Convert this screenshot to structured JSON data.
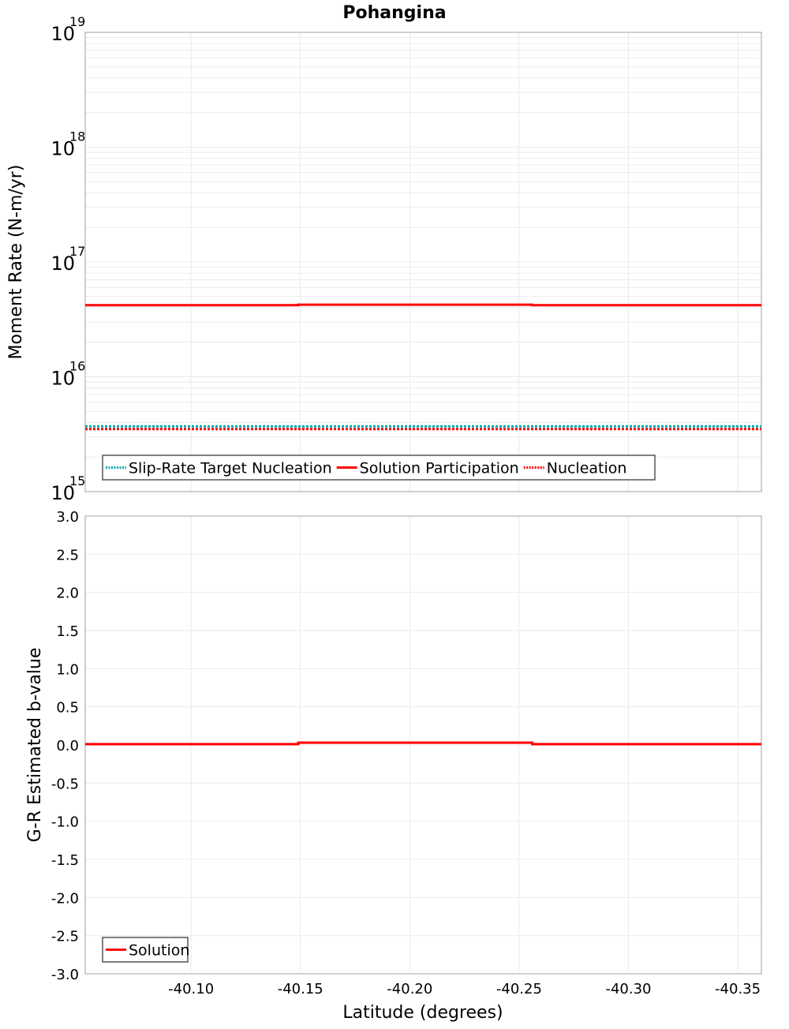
{
  "chart_data": [
    {
      "type": "line",
      "title": "Pohangina",
      "xlabel": "Latitude (degrees)",
      "ylabel": "Moment Rate (N-m/yr)",
      "yscale": "log",
      "ylim": [
        1000000000000000.0,
        1e+19
      ],
      "xlim": [
        -40.0516,
        -40.3608
      ],
      "x_inverted": true,
      "grid": true,
      "y_ticks": [
        {
          "base": "10",
          "exp": "19",
          "value": 1e+19
        },
        {
          "base": "10",
          "exp": "18",
          "value": 1e+18
        },
        {
          "base": "10",
          "exp": "17",
          "value": 1e+17
        },
        {
          "base": "10",
          "exp": "16",
          "value": 1e+16
        },
        {
          "base": "10",
          "exp": "15",
          "value": 1000000000000000.0
        }
      ],
      "legend_position": "lower-left",
      "series": [
        {
          "name": "Slip-Rate Target Nucleation",
          "color": "#00aaaa",
          "style": "dotted",
          "x": [
            -40.0516,
            -40.149,
            -40.149,
            -40.256,
            -40.256,
            -40.3608
          ],
          "values": [
            3700000000000000.0,
            3700000000000000.0,
            3700000000000000.0,
            3700000000000000.0,
            3700000000000000.0,
            3700000000000000.0
          ]
        },
        {
          "name": "Solution Participation",
          "color": "#ff0000",
          "style": "solid",
          "x": [
            -40.0516,
            -40.149,
            -40.149,
            -40.256,
            -40.256,
            -40.3608
          ],
          "values": [
            4.2e+16,
            4.2e+16,
            4.25e+16,
            4.25e+16,
            4.2e+16,
            4.2e+16
          ]
        },
        {
          "name": "Nucleation",
          "color": "#ff0000",
          "style": "dotted",
          "x": [
            -40.0516,
            -40.149,
            -40.149,
            -40.256,
            -40.256,
            -40.3608
          ],
          "values": [
            3500000000000000.0,
            3500000000000000.0,
            3500000000000000.0,
            3500000000000000.0,
            3500000000000000.0,
            3500000000000000.0
          ]
        }
      ]
    },
    {
      "type": "line",
      "title": "",
      "xlabel": "Latitude (degrees)",
      "ylabel": "G-R Estimated b-value",
      "ylim": [
        -3.0,
        3.0
      ],
      "xlim": [
        -40.0516,
        -40.3608
      ],
      "x_inverted": true,
      "grid": true,
      "y_ticks": [
        "3.0",
        "2.5",
        "2.0",
        "1.5",
        "1.0",
        "0.5",
        "0.0",
        "-0.5",
        "-1.0",
        "-1.5",
        "-2.0",
        "-2.5",
        "-3.0"
      ],
      "x_ticks": [
        "-40.10",
        "-40.15",
        "-40.20",
        "-40.25",
        "-40.30",
        "-40.35"
      ],
      "legend_position": "lower-left",
      "series": [
        {
          "name": "Solution",
          "color": "#ff0000",
          "style": "solid",
          "x": [
            -40.0516,
            -40.149,
            -40.149,
            -40.256,
            -40.256,
            -40.3608
          ],
          "values": [
            0.01,
            0.01,
            0.03,
            0.03,
            0.01,
            0.01
          ]
        }
      ]
    }
  ],
  "labels": {
    "title": "Pohangina",
    "top_ylabel": "Moment Rate (N-m/yr)",
    "bottom_ylabel": "G-R Estimated b-value",
    "xlabel": "Latitude (degrees)"
  },
  "top_legend": [
    {
      "label": "Slip-Rate Target Nucleation",
      "color": "#00aaaa",
      "style": "dotted"
    },
    {
      "label": "Solution Participation",
      "color": "#ff0000",
      "style": "solid"
    },
    {
      "label": "Nucleation",
      "color": "#ff0000",
      "style": "dotted"
    }
  ],
  "bottom_legend": [
    {
      "label": "Solution",
      "color": "#ff0000",
      "style": "solid"
    }
  ],
  "colors": {
    "grid": "#ebebeb",
    "frame": "#a0a0a0",
    "legend_border": "#555555"
  }
}
